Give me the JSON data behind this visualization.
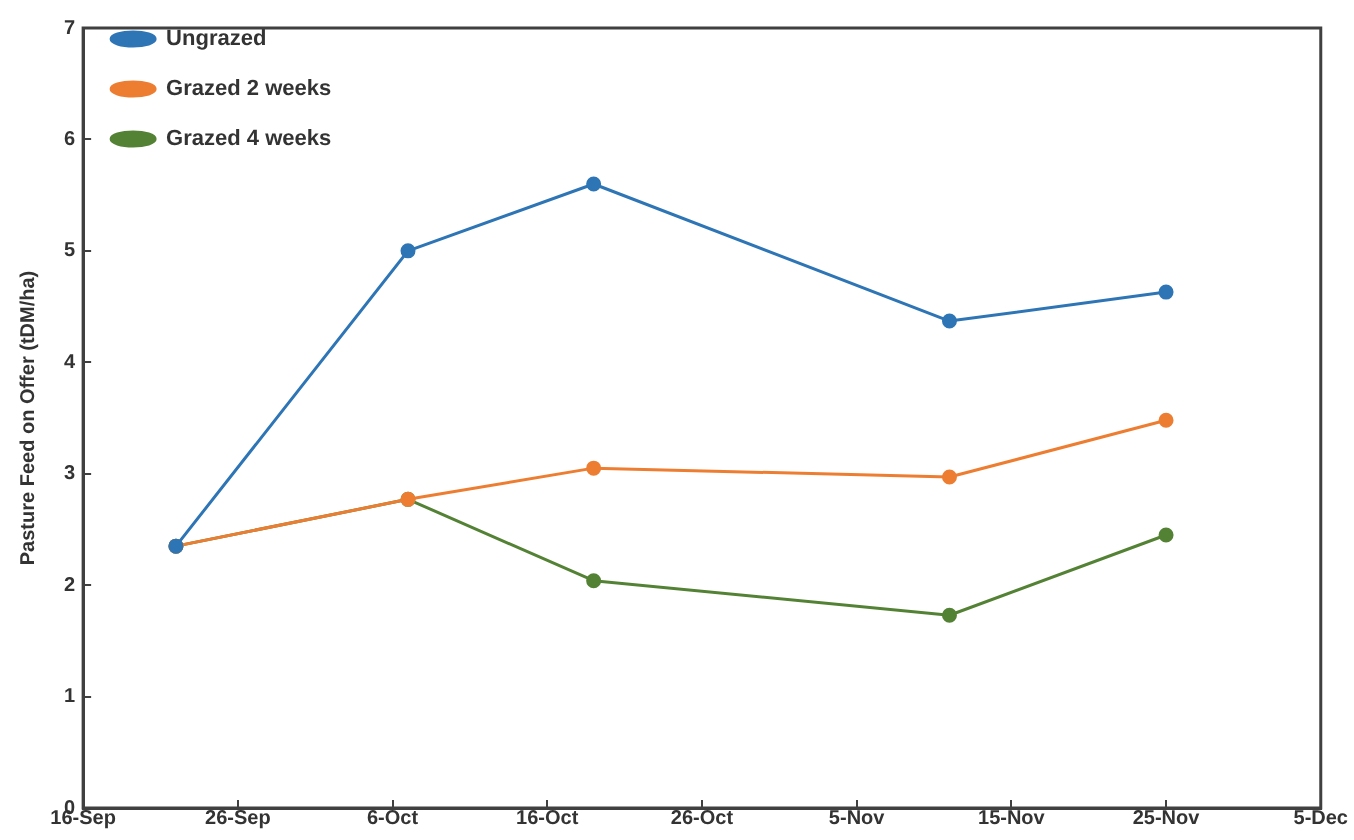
{
  "chart_data": {
    "type": "line",
    "ylabel": "Pasture Feed on Offer (tDM/ha)",
    "x": [
      "--09-22",
      "--10-07",
      "--10-19",
      "--11-11",
      "--11-25"
    ],
    "series": [
      {
        "name": "Ungrazed",
        "color": "#2e75b6",
        "values": [
          2.35,
          5.0,
          5.6,
          4.37,
          4.63
        ]
      },
      {
        "name": "Grazed 2 weeks",
        "color": "#ed7d31",
        "values": [
          2.35,
          2.77,
          3.05,
          2.97,
          3.48
        ]
      },
      {
        "name": "Grazed 4 weeks",
        "color": "#548235",
        "values": [
          2.35,
          2.77,
          2.04,
          1.73,
          2.45
        ]
      }
    ],
    "xlim": [
      "--09-16",
      "--12-05"
    ],
    "xticks": [
      {
        "value": "--09-16",
        "label": "16-Sep"
      },
      {
        "value": "--09-26",
        "label": "26-Sep"
      },
      {
        "value": "--10-06",
        "label": "6-Oct"
      },
      {
        "value": "--10-16",
        "label": "16-Oct"
      },
      {
        "value": "--10-26",
        "label": "26-Oct"
      },
      {
        "value": "--11-05",
        "label": "5-Nov"
      },
      {
        "value": "--11-15",
        "label": "15-Nov"
      },
      {
        "value": "--11-25",
        "label": "25-Nov"
      },
      {
        "value": "--12-05",
        "label": "5-Dec"
      }
    ],
    "ylim": [
      0,
      7
    ],
    "yticks": [
      0,
      1,
      2,
      3,
      4,
      5,
      6,
      7
    ],
    "grid": false,
    "legend": "top left",
    "marker": "circle",
    "line_style": "solid"
  }
}
